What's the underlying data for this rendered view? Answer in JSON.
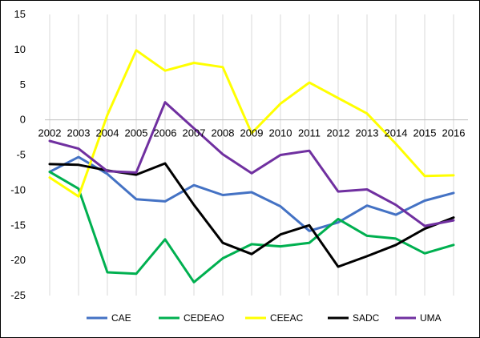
{
  "chart_data": {
    "type": "line",
    "title": "",
    "xlabel": "",
    "ylabel": "",
    "ylim": [
      -25,
      15
    ],
    "y_ticks": [
      15,
      10,
      5,
      0,
      -5,
      -10,
      -15,
      -20,
      -25
    ],
    "categories": [
      "2002",
      "2003",
      "2004",
      "2005",
      "2006",
      "2007",
      "2008",
      "2009",
      "2010",
      "2011",
      "2012",
      "2013",
      "2014",
      "2015",
      "2016"
    ],
    "grid": "vertical",
    "legend_position": "bottom",
    "series": [
      {
        "name": "CAE",
        "color": "#4472C4",
        "values": [
          -7.4,
          -5.3,
          -7.7,
          -11.3,
          -11.6,
          -9.3,
          -10.7,
          -10.3,
          -12.3,
          -15.8,
          -14.6,
          -12.2,
          -13.5,
          -11.5,
          -10.4
        ]
      },
      {
        "name": "CEDEAO",
        "color": "#00B050",
        "values": [
          -7.4,
          -9.8,
          -21.7,
          -21.9,
          -17.0,
          -23.1,
          -19.7,
          -17.7,
          -18.0,
          -17.5,
          -14.1,
          -16.5,
          -16.9,
          -19.0,
          -17.8
        ]
      },
      {
        "name": "CEEAC",
        "color": "#FFFF00",
        "values": [
          -8.2,
          -10.9,
          0.7,
          9.9,
          7.0,
          8.1,
          7.5,
          -1.9,
          2.3,
          5.3,
          3.1,
          0.9,
          -3.4,
          -8.0,
          -7.9
        ]
      },
      {
        "name": "SADC",
        "color": "#000000",
        "values": [
          -6.3,
          -6.4,
          -7.2,
          -7.8,
          -6.2,
          -12.1,
          -17.5,
          -19.1,
          -16.3,
          -15.0,
          -20.9,
          -19.4,
          -17.8,
          -15.5,
          -13.9
        ]
      },
      {
        "name": "UMA",
        "color": "#7030A0",
        "values": [
          -3.0,
          -4.1,
          -7.3,
          -7.5,
          2.5,
          -1.2,
          -4.9,
          -7.6,
          -5.0,
          -4.4,
          -10.2,
          -9.9,
          -12.1,
          -15.1,
          -14.3
        ]
      }
    ]
  }
}
